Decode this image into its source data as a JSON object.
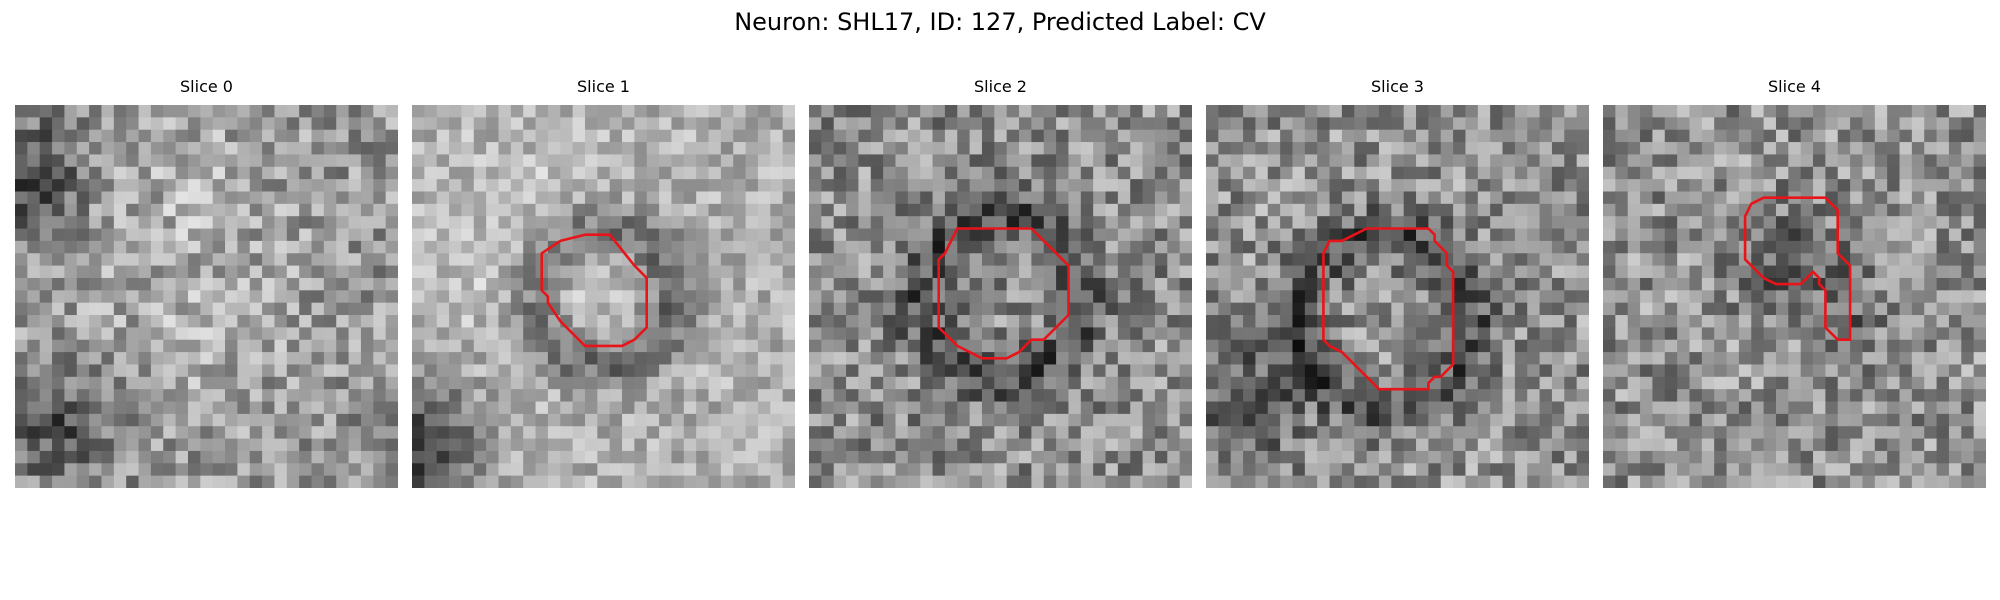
{
  "figure": {
    "title": "Neuron: SHL17, ID: 127, Predicted Label: CV"
  },
  "colors": {
    "contour": "#e8141a",
    "background": "#ffffff"
  },
  "panels": [
    {
      "title": "Slice 0"
    },
    {
      "title": "Slice 1"
    },
    {
      "title": "Slice 2"
    },
    {
      "title": "Slice 3"
    },
    {
      "title": "Slice 4"
    }
  ]
}
